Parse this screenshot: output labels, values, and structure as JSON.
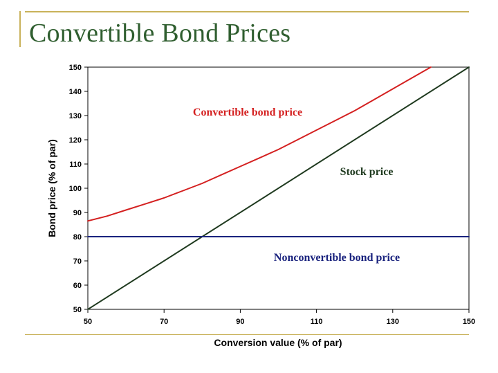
{
  "slide": {
    "title": "Convertible Bond Prices"
  },
  "colors": {
    "title": "#2f5e2f",
    "accent_rule": "#c9b25a",
    "convertible": "#d42020",
    "stock": "#1f3a1f",
    "nonconvertible": "#1a237e"
  },
  "chart_data": {
    "type": "line",
    "title": "",
    "xlabel": "Conversion value (% of par)",
    "ylabel": "Bond price (% of par)",
    "xlim": [
      50,
      150
    ],
    "ylim": [
      50,
      150
    ],
    "xticks": [
      50,
      70,
      90,
      110,
      130,
      150
    ],
    "yticks": [
      50,
      60,
      70,
      80,
      90,
      100,
      110,
      120,
      130,
      140,
      150
    ],
    "grid": false,
    "series": [
      {
        "name": "Convertible bond price",
        "color": "#d42020",
        "x": [
          50,
          55,
          60,
          65,
          70,
          75,
          80,
          85,
          90,
          95,
          100,
          105,
          110,
          115,
          120,
          125,
          130,
          135,
          140
        ],
        "y": [
          86.5,
          88.5,
          91,
          93.5,
          96,
          99,
          102,
          105.5,
          109,
          112.5,
          116,
          120,
          124,
          128,
          132,
          136.5,
          141,
          145.5,
          150
        ]
      },
      {
        "name": "Stock price",
        "color": "#1f3a1f",
        "x": [
          50,
          150
        ],
        "y": [
          50,
          150
        ]
      },
      {
        "name": "Nonconvertible bond price",
        "color": "#1a237e",
        "x": [
          50,
          150
        ],
        "y": [
          80,
          80
        ]
      }
    ]
  }
}
